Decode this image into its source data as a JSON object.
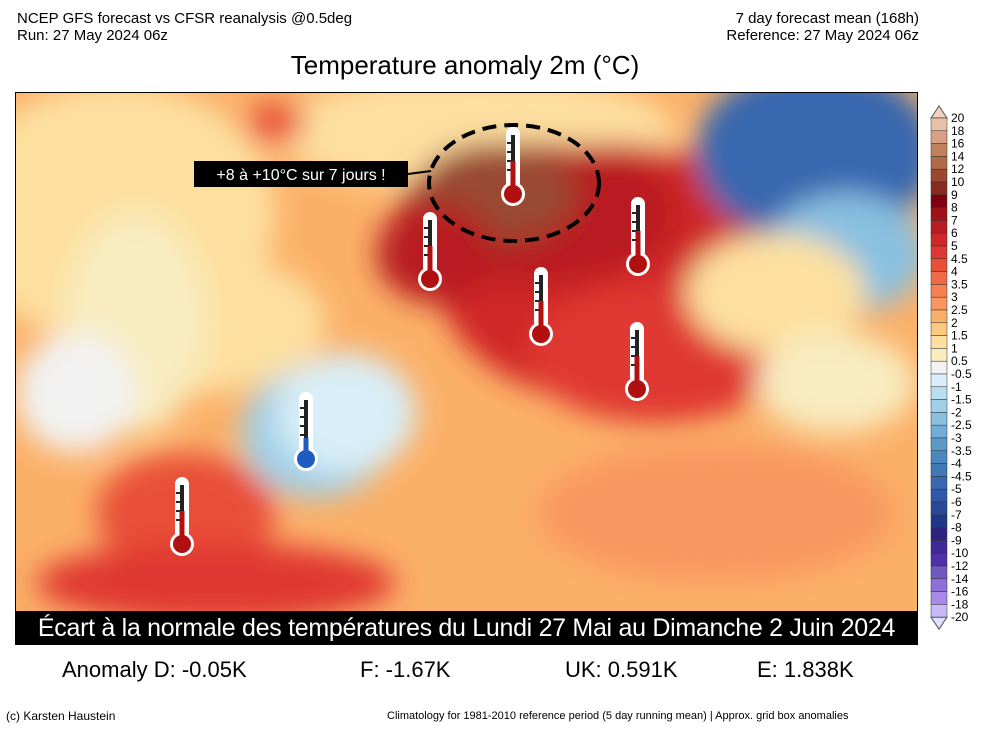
{
  "header": {
    "left_line1": "NCEP GFS forecast vs CFSR reanalysis @0.5deg",
    "left_line2": "Run: 27 May 2024 06z",
    "right_line1": "7 day forecast mean (168h)",
    "right_line2": "Reference: 27 May 2024 06z",
    "title": "Temperature anomaly 2m (°C)"
  },
  "map": {
    "annotation": "+8 à +10°C sur 7 jours !",
    "thermometers": [
      {
        "region": "north-finland",
        "type": "hot"
      },
      {
        "region": "norway-sweden",
        "type": "hot"
      },
      {
        "region": "north-russia",
        "type": "hot"
      },
      {
        "region": "baltic",
        "type": "hot"
      },
      {
        "region": "central-russia",
        "type": "hot"
      },
      {
        "region": "france",
        "type": "cold"
      },
      {
        "region": "iberia",
        "type": "hot"
      }
    ],
    "colors": {
      "hot": "#b01010",
      "cold": "#1f5cc0"
    }
  },
  "caption": "Écart à la normale des températures du Lundi 27 Mai au Dimanche 2 Juin 2024",
  "anomalies": [
    {
      "label": "Anomaly D: -0.05K"
    },
    {
      "label": "F: -1.67K"
    },
    {
      "label": "UK: 0.591K"
    },
    {
      "label": "E: 1.838K"
    }
  ],
  "footer": {
    "left": "(c) Karsten Haustein",
    "right": "Climatology for 1981-2010 reference period (5 day running mean) | Approx. grid box anomalies"
  },
  "colorbar": {
    "labels": [
      "20",
      "18",
      "16",
      "14",
      "12",
      "10",
      "9",
      "8",
      "7",
      "6",
      "5",
      "4.5",
      "4",
      "3.5",
      "3",
      "2.5",
      "2",
      "1.5",
      "1",
      "0.5",
      "-0.5",
      "-1",
      "-1.5",
      "-2",
      "-2.5",
      "-3",
      "-3.5",
      "-4",
      "-4.5",
      "-5",
      "-6",
      "-7",
      "-8",
      "-9",
      "-10",
      "-12",
      "-14",
      "-16",
      "-18",
      "-20"
    ],
    "colors": [
      "#e8c0a8",
      "#d9a088",
      "#c08058",
      "#b06a48",
      "#9a4830",
      "#8a2a20",
      "#800010",
      "#a01018",
      "#b81c20",
      "#d02828",
      "#e03830",
      "#e85038",
      "#f06a48",
      "#f58050",
      "#f89860",
      "#fbb068",
      "#fdc880",
      "#fde0a0",
      "#f8ecc0",
      "#f2f2f2",
      "#d8eef8",
      "#b8e0f0",
      "#a0d0e8",
      "#88c0e0",
      "#70acd4",
      "#5c98c8",
      "#4c88c0",
      "#4078b8",
      "#3868b0",
      "#3058a8",
      "#284898",
      "#203888",
      "#302080",
      "#402898",
      "#5030a8",
      "#7058c0",
      "#9070d8",
      "#a888e8",
      "#c8b8f8"
    ],
    "top_color": "#f0d0c0",
    "bottom_color": "#dde0ff"
  }
}
